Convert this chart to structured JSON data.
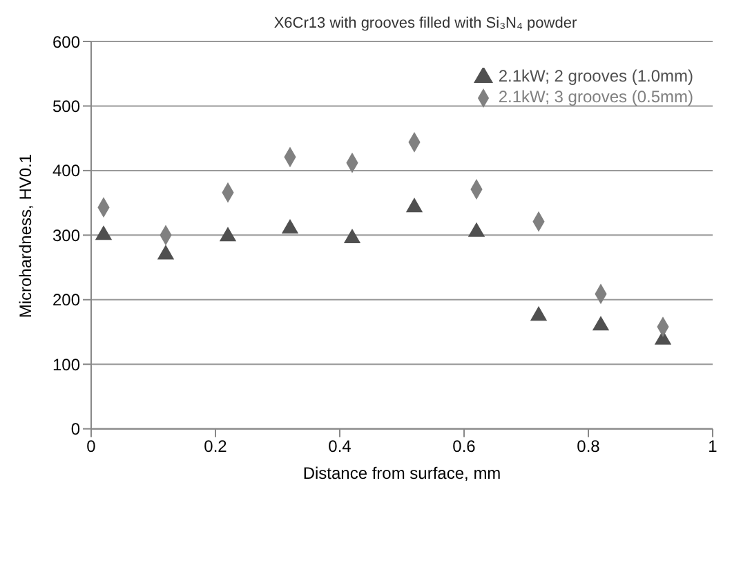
{
  "chart_data": {
    "type": "scatter",
    "title": "X6Cr13 with grooves filled with Si₃N₄ powder",
    "xlabel": "Distance from surface, mm",
    "ylabel": "Microhardness, HV0.1",
    "x": [
      0.02,
      0.12,
      0.22,
      0.32,
      0.42,
      0.52,
      0.62,
      0.72,
      0.82,
      0.92
    ],
    "series": [
      {
        "name": "2.1kW; 2 grooves (1.0mm)",
        "color": "#505050",
        "marker": "triangle",
        "values": [
          300,
          270,
          298,
          310,
          295,
          343,
          305,
          175,
          160,
          138
        ]
      },
      {
        "name": "2.1kW; 3 grooves (0.5mm)",
        "color": "#808080",
        "marker": "diamond",
        "values": [
          343,
          300,
          366,
          421,
          412,
          444,
          371,
          321,
          209,
          158
        ]
      }
    ],
    "xlim": [
      0,
      1
    ],
    "xticks": [
      0,
      0.2,
      0.4,
      0.6,
      0.8,
      1
    ],
    "ylim": [
      0,
      600
    ],
    "yticks": [
      0,
      100,
      200,
      300,
      400,
      500,
      600
    ],
    "grid": "y",
    "legend": "top right"
  }
}
